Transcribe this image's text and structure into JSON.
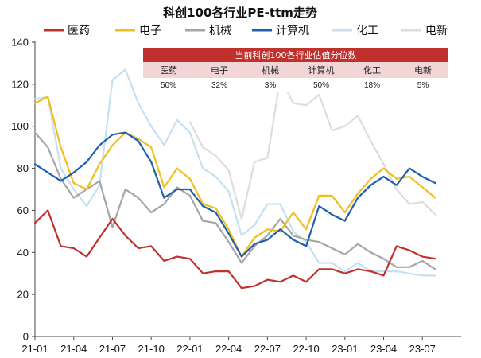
{
  "chart_data": {
    "type": "line",
    "title": "科创100各行业PE-ttm走势",
    "ylim": [
      0,
      140
    ],
    "yticks": [
      0,
      20,
      40,
      60,
      80,
      100,
      120,
      140
    ],
    "xlim": [
      0,
      33
    ],
    "xticks": [
      {
        "x": 0,
        "label": "21-01"
      },
      {
        "x": 3,
        "label": "21-04"
      },
      {
        "x": 6,
        "label": "21-07"
      },
      {
        "x": 9,
        "label": "21-10"
      },
      {
        "x": 12,
        "label": "22-01"
      },
      {
        "x": 15,
        "label": "22-04"
      },
      {
        "x": 18,
        "label": "22-07"
      },
      {
        "x": 21,
        "label": "22-10"
      },
      {
        "x": 24,
        "label": "23-01"
      },
      {
        "x": 27,
        "label": "23-04"
      },
      {
        "x": 30,
        "label": "23-07"
      }
    ],
    "series": [
      {
        "name": "医药",
        "color": "#c0312e",
        "x": [
          0,
          1,
          2,
          3,
          4,
          5,
          6,
          7,
          8,
          9,
          10,
          11,
          12,
          13,
          14,
          15,
          16,
          17,
          18,
          19,
          20,
          21,
          22,
          23,
          24,
          25,
          26,
          27,
          28,
          29,
          30,
          31
        ],
        "values": [
          54,
          60,
          43,
          42,
          38,
          47,
          56,
          48,
          42,
          43,
          36,
          38,
          37,
          30,
          31,
          31,
          23,
          24,
          27,
          26,
          29,
          26,
          32,
          32,
          30,
          32,
          31,
          29,
          43,
          41,
          38,
          37
        ]
      },
      {
        "name": "电子",
        "color": "#f0bf1b",
        "x": [
          0,
          1,
          2,
          3,
          4,
          5,
          6,
          7,
          8,
          9,
          10,
          11,
          12,
          13,
          14,
          15,
          16,
          17,
          18,
          19,
          20,
          21,
          22,
          23,
          24,
          25,
          26,
          27,
          28,
          29,
          30,
          31
        ],
        "values": [
          111,
          114,
          90,
          73,
          70,
          82,
          91,
          97,
          94,
          90,
          71,
          80,
          75,
          63,
          61,
          51,
          38,
          47,
          51,
          50,
          59,
          51,
          67,
          67,
          59,
          68,
          75,
          80,
          75,
          76,
          71,
          66
        ]
      },
      {
        "name": "机械",
        "color": "#a6a6a6",
        "x": [
          0,
          1,
          2,
          3,
          4,
          5,
          6,
          7,
          8,
          9,
          10,
          11,
          12,
          13,
          14,
          15,
          16,
          17,
          18,
          19,
          20,
          21,
          22,
          23,
          24,
          25,
          26,
          27,
          28,
          29,
          30,
          31
        ],
        "values": [
          97,
          90,
          75,
          66,
          70,
          74,
          52,
          70,
          66,
          59,
          63,
          71,
          67,
          55,
          54,
          45,
          35,
          43,
          48,
          56,
          48,
          46,
          45,
          42,
          39,
          44,
          40,
          37,
          33,
          33,
          36,
          32
        ]
      },
      {
        "name": "计算机",
        "color": "#1f5fae",
        "x": [
          0,
          1,
          2,
          3,
          4,
          5,
          6,
          7,
          8,
          9,
          10,
          11,
          12,
          13,
          14,
          15,
          16,
          17,
          18,
          19,
          20,
          21,
          22,
          23,
          24,
          25,
          26,
          27,
          28,
          29,
          30,
          31
        ],
        "values": [
          82,
          78,
          74,
          78,
          83,
          91,
          96,
          97,
          93,
          83,
          66,
          70,
          70,
          62,
          59,
          49,
          38,
          44,
          46,
          51,
          46,
          43,
          62,
          58,
          55,
          66,
          72,
          76,
          72,
          80,
          76,
          73
        ]
      },
      {
        "name": "化工",
        "color": "#c5e0f0",
        "x": [
          0,
          1,
          2,
          3,
          4,
          5,
          6,
          7,
          8,
          9,
          10,
          11,
          12,
          13,
          14,
          15,
          16,
          17,
          18,
          19,
          20,
          21,
          22,
          23,
          24,
          25,
          26,
          27,
          28,
          29,
          30,
          31
        ],
        "values": [
          113,
          114,
          80,
          70,
          62,
          72,
          122,
          127,
          111,
          100,
          91,
          103,
          97,
          80,
          76,
          69,
          48,
          53,
          63,
          63,
          50,
          45,
          35,
          35,
          31,
          35,
          31,
          31,
          31,
          30,
          29,
          29
        ]
      },
      {
        "name": "电新",
        "color": "#dddddd",
        "x": [
          12,
          13,
          14,
          15,
          16,
          17,
          18,
          19,
          20,
          21,
          22,
          23,
          24,
          25,
          26,
          27,
          28,
          29,
          30,
          31
        ],
        "values": [
          102,
          90,
          86,
          79,
          56,
          83,
          85,
          123,
          111,
          110,
          115,
          98,
          100,
          105,
          93,
          82,
          70,
          63,
          64,
          58
        ]
      }
    ],
    "legend_position": "top",
    "grid": false
  },
  "table": {
    "title": "当前科创100各行业估值分位数",
    "headers": [
      "医药",
      "电子",
      "机械",
      "计算机",
      "化工",
      "电新"
    ],
    "values": [
      "50%",
      "32%",
      "3%",
      "50%",
      "18%",
      "5%"
    ]
  }
}
